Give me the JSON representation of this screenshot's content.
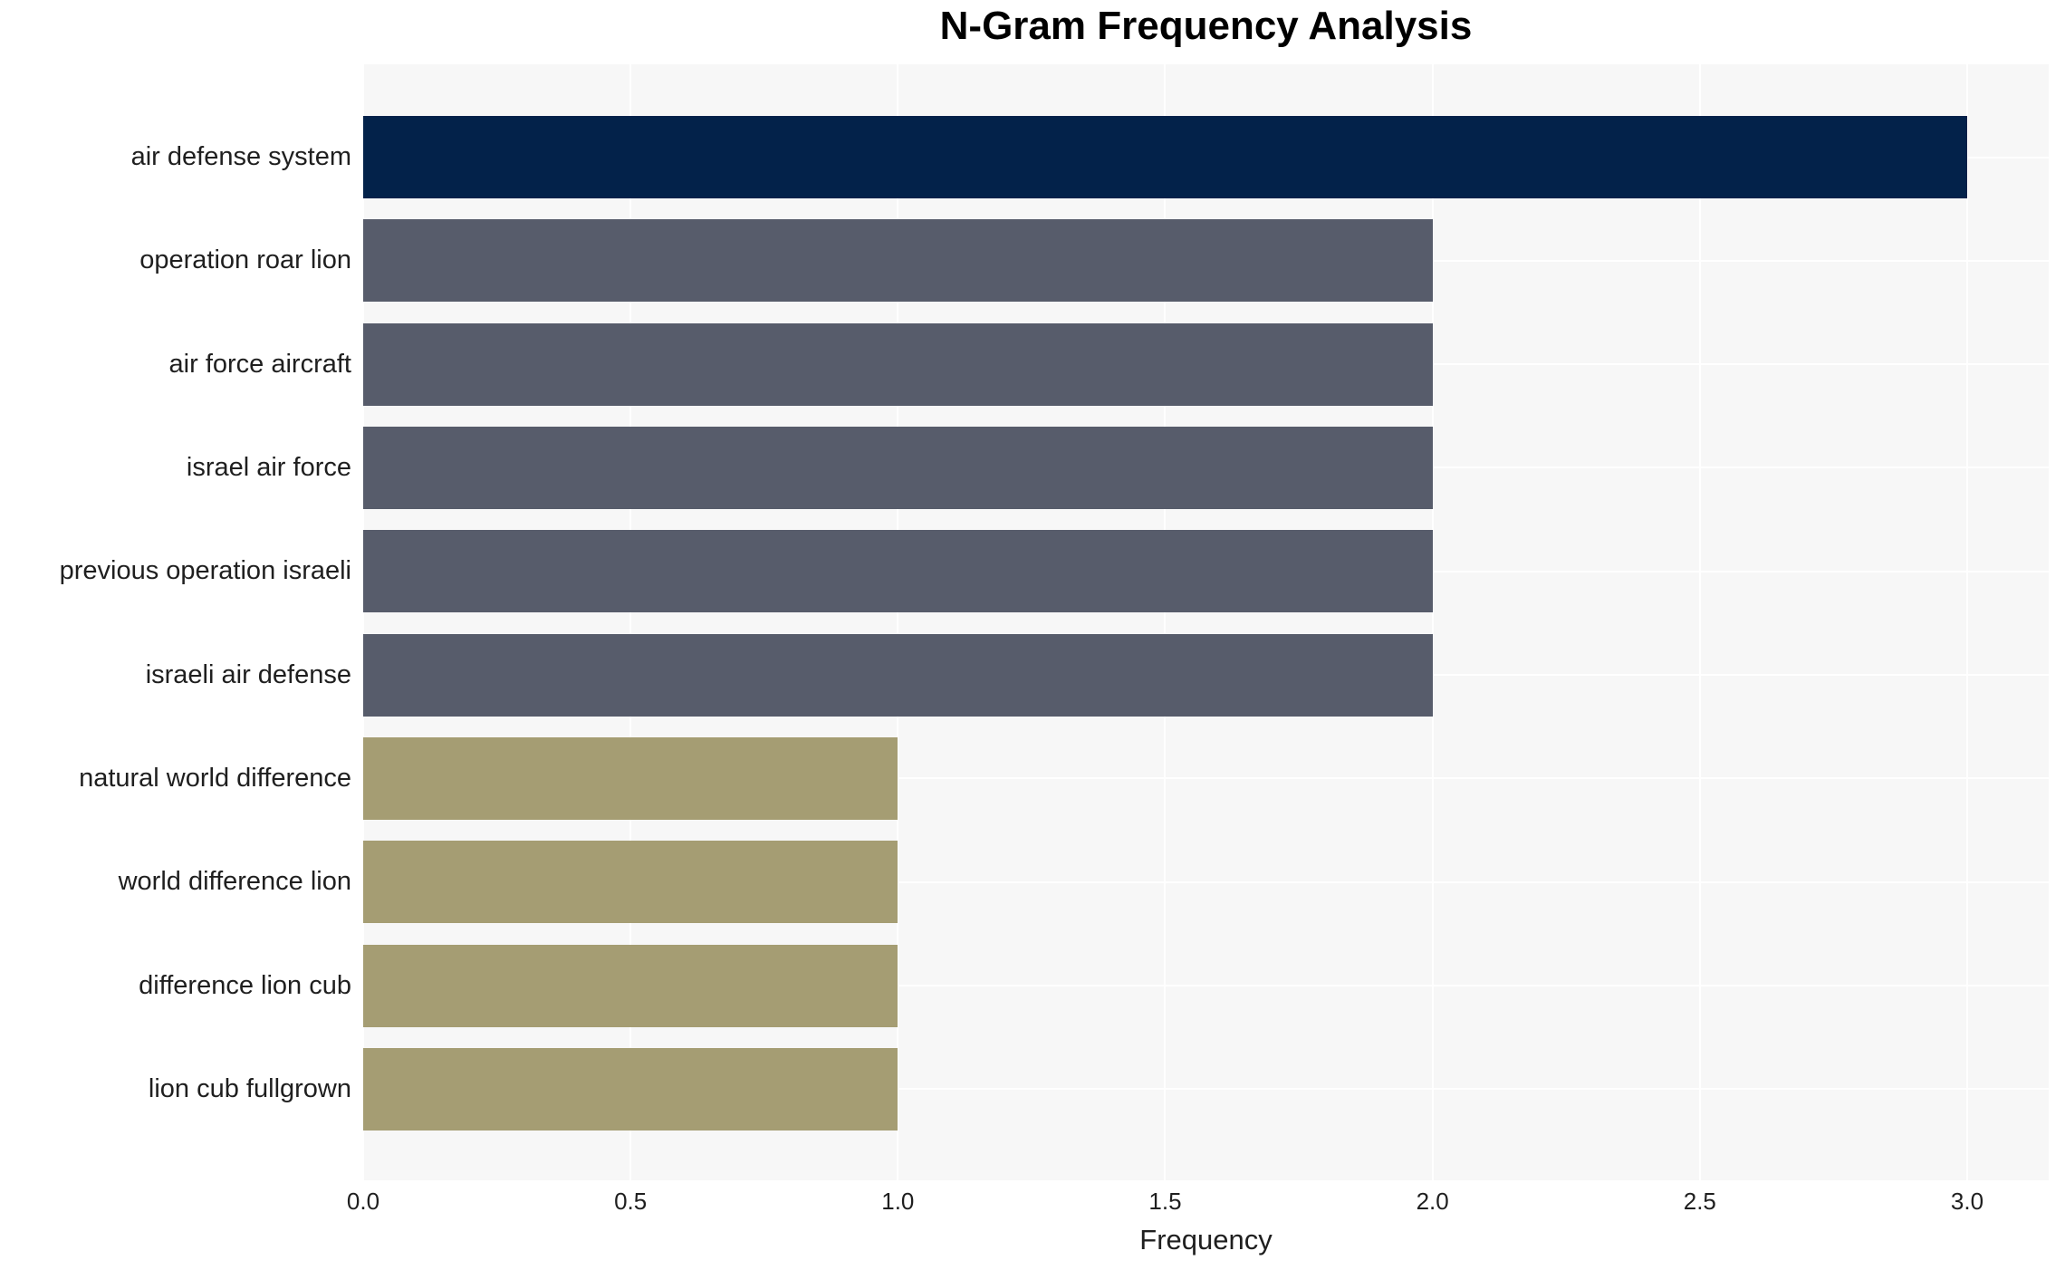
{
  "chart_data": {
    "type": "bar",
    "orientation": "horizontal",
    "title": "N-Gram Frequency Analysis",
    "xlabel": "Frequency",
    "ylabel": "",
    "categories": [
      "air defense system",
      "operation roar lion",
      "air force aircraft",
      "israel air force",
      "previous operation israeli",
      "israeli air defense",
      "natural world difference",
      "world difference lion",
      "difference lion cub",
      "lion cub fullgrown"
    ],
    "values": [
      3,
      2,
      2,
      2,
      2,
      2,
      1,
      1,
      1,
      1
    ],
    "bar_colors": [
      "#03224A",
      "#575C6B",
      "#575C6B",
      "#575C6B",
      "#575C6B",
      "#575C6B",
      "#A59D73",
      "#A59D73",
      "#A59D73",
      "#A59D73"
    ],
    "x_tick_labels": [
      "0.0",
      "0.5",
      "1.0",
      "1.5",
      "2.0",
      "2.5",
      "3.0"
    ],
    "x_tick_values": [
      0,
      0.5,
      1,
      1.5,
      2,
      2.5,
      3
    ],
    "xlim": [
      0,
      3.1525
    ],
    "grid": "on",
    "legend": "none",
    "colors": {
      "panel_background": "#F7F7F7",
      "gridline": "#FFFFFF",
      "title_text": "#000000",
      "tick_text": "#1F1F1F"
    }
  }
}
